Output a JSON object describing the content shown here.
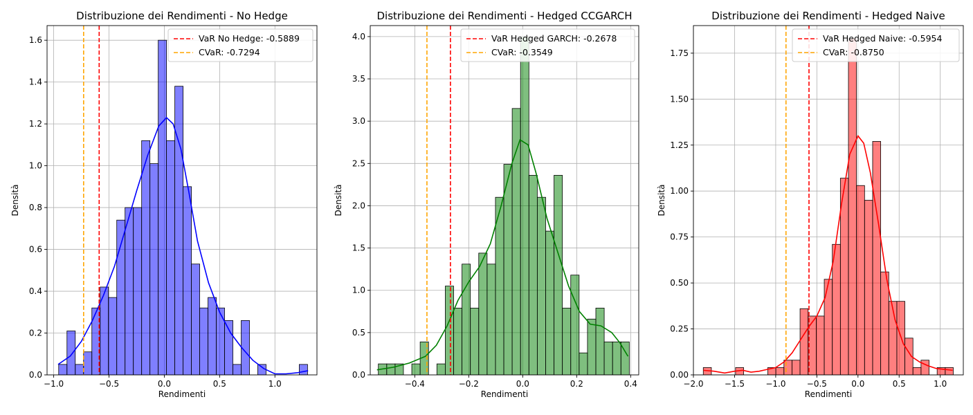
{
  "chart_data": [
    {
      "type": "histogram",
      "title": "Distribuzione dei Rendimenti - No Hedge",
      "xlabel": "Rendimenti",
      "ylabel": "Densità",
      "xlim": [
        -1.06,
        1.38
      ],
      "ylim": [
        0,
        1.67
      ],
      "xticks": [
        -1.0,
        -0.5,
        0.0,
        0.5,
        1.0
      ],
      "xtick_labels": [
        "−1.0",
        "−0.5",
        "0.0",
        "0.5",
        "1.0"
      ],
      "yticks": [
        0.0,
        0.2,
        0.4,
        0.6,
        0.8,
        1.0,
        1.2,
        1.4,
        1.6
      ],
      "ytick_labels": [
        "0.0",
        "0.2",
        "0.4",
        "0.6",
        "0.8",
        "1.0",
        "1.2",
        "1.4",
        "1.6"
      ],
      "grid": true,
      "legend_position": "top-right",
      "bar_color": "#0000ff",
      "kde_color": "#0000ff",
      "bins": [
        [
          -0.955,
          -0.88,
          0.05
        ],
        [
          -0.88,
          -0.805,
          0.21
        ],
        [
          -0.805,
          -0.73,
          0.05
        ],
        [
          -0.73,
          -0.655,
          0.11
        ],
        [
          -0.655,
          -0.58,
          0.32
        ],
        [
          -0.58,
          -0.505,
          0.42
        ],
        [
          -0.505,
          -0.43,
          0.37
        ],
        [
          -0.43,
          -0.355,
          0.74
        ],
        [
          -0.355,
          -0.28,
          0.8
        ],
        [
          -0.28,
          -0.205,
          0.8
        ],
        [
          -0.205,
          -0.13,
          1.12
        ],
        [
          -0.13,
          -0.055,
          1.01
        ],
        [
          -0.055,
          0.02,
          1.6
        ],
        [
          0.02,
          0.095,
          1.12
        ],
        [
          0.095,
          0.17,
          1.38
        ],
        [
          0.17,
          0.245,
          0.9
        ],
        [
          0.245,
          0.32,
          0.53
        ],
        [
          0.32,
          0.395,
          0.32
        ],
        [
          0.395,
          0.47,
          0.37
        ],
        [
          0.47,
          0.545,
          0.32
        ],
        [
          0.545,
          0.62,
          0.26
        ],
        [
          0.62,
          0.695,
          0.05
        ],
        [
          0.695,
          0.77,
          0.26
        ],
        [
          0.77,
          0.845,
          0.0
        ],
        [
          0.845,
          0.92,
          0.05
        ],
        [
          0.92,
          0.995,
          0.0
        ],
        [
          0.995,
          1.07,
          0.0
        ],
        [
          1.07,
          1.145,
          0.0
        ],
        [
          1.145,
          1.22,
          0.0
        ],
        [
          1.22,
          1.295,
          0.05
        ]
      ],
      "kde": [
        [
          -0.96,
          0.05
        ],
        [
          -0.85,
          0.09
        ],
        [
          -0.75,
          0.16
        ],
        [
          -0.65,
          0.26
        ],
        [
          -0.55,
          0.38
        ],
        [
          -0.45,
          0.52
        ],
        [
          -0.35,
          0.7
        ],
        [
          -0.25,
          0.88
        ],
        [
          -0.15,
          1.05
        ],
        [
          -0.05,
          1.19
        ],
        [
          0.02,
          1.23
        ],
        [
          0.08,
          1.2
        ],
        [
          0.15,
          1.08
        ],
        [
          0.22,
          0.88
        ],
        [
          0.3,
          0.64
        ],
        [
          0.4,
          0.44
        ],
        [
          0.5,
          0.3
        ],
        [
          0.6,
          0.2
        ],
        [
          0.7,
          0.13
        ],
        [
          0.8,
          0.07
        ],
        [
          0.9,
          0.03
        ],
        [
          1.0,
          0.005
        ],
        [
          1.1,
          0.005
        ],
        [
          1.2,
          0.01
        ],
        [
          1.3,
          0.02
        ]
      ],
      "lines": [
        {
          "label": "VaR No Hedge: -0.5889",
          "x": -0.5889,
          "color": "#ff0000"
        },
        {
          "label": "CVaR: -0.7294",
          "x": -0.7294,
          "color": "#ffa500"
        }
      ]
    },
    {
      "type": "histogram",
      "title": "Distribuzione dei Rendimenti - Hedged CCGARCH",
      "xlabel": "Rendimenti",
      "ylabel": "Densità",
      "xlim": [
        -0.565,
        0.43
      ],
      "ylim": [
        0,
        4.13
      ],
      "xticks": [
        -0.4,
        -0.2,
        0.0,
        0.2,
        0.4
      ],
      "xtick_labels": [
        "−0.4",
        "−0.2",
        "0.0",
        "0.2",
        "0.4"
      ],
      "yticks": [
        0.0,
        0.5,
        1.0,
        1.5,
        2.0,
        2.5,
        3.0,
        3.5,
        4.0
      ],
      "ytick_labels": [
        "0.0",
        "0.5",
        "1.0",
        "1.5",
        "2.0",
        "2.5",
        "3.0",
        "3.5",
        "4.0"
      ],
      "grid": true,
      "legend_position": "top-right",
      "bar_color": "#008000",
      "kde_color": "#008000",
      "bins": [
        [
          -0.535,
          -0.504,
          0.13
        ],
        [
          -0.504,
          -0.473,
          0.13
        ],
        [
          -0.473,
          -0.442,
          0.13
        ],
        [
          -0.442,
          -0.411,
          0.0
        ],
        [
          -0.411,
          -0.38,
          0.13
        ],
        [
          -0.38,
          -0.349,
          0.39
        ],
        [
          -0.349,
          -0.318,
          0.0
        ],
        [
          -0.318,
          -0.287,
          0.13
        ],
        [
          -0.287,
          -0.256,
          1.05
        ],
        [
          -0.256,
          -0.225,
          0.79
        ],
        [
          -0.225,
          -0.194,
          1.31
        ],
        [
          -0.194,
          -0.163,
          0.79
        ],
        [
          -0.163,
          -0.132,
          1.44
        ],
        [
          -0.132,
          -0.101,
          1.31
        ],
        [
          -0.101,
          -0.07,
          2.1
        ],
        [
          -0.07,
          -0.039,
          2.49
        ],
        [
          -0.039,
          -0.008,
          3.15
        ],
        [
          -0.008,
          0.023,
          4.0
        ],
        [
          0.023,
          0.054,
          2.36
        ],
        [
          0.054,
          0.085,
          2.1
        ],
        [
          0.085,
          0.116,
          1.7
        ],
        [
          0.116,
          0.147,
          2.36
        ],
        [
          0.147,
          0.178,
          0.79
        ],
        [
          0.178,
          0.209,
          1.18
        ],
        [
          0.209,
          0.24,
          0.26
        ],
        [
          0.24,
          0.271,
          0.66
        ],
        [
          0.271,
          0.302,
          0.79
        ],
        [
          0.302,
          0.333,
          0.39
        ],
        [
          0.333,
          0.364,
          0.39
        ],
        [
          0.364,
          0.395,
          0.39
        ]
      ],
      "kde": [
        [
          -0.54,
          0.06
        ],
        [
          -0.48,
          0.09
        ],
        [
          -0.42,
          0.14
        ],
        [
          -0.36,
          0.22
        ],
        [
          -0.32,
          0.35
        ],
        [
          -0.28,
          0.58
        ],
        [
          -0.24,
          0.88
        ],
        [
          -0.2,
          1.1
        ],
        [
          -0.16,
          1.28
        ],
        [
          -0.12,
          1.55
        ],
        [
          -0.08,
          2.0
        ],
        [
          -0.04,
          2.5
        ],
        [
          -0.01,
          2.78
        ],
        [
          0.02,
          2.72
        ],
        [
          0.05,
          2.38
        ],
        [
          0.09,
          1.85
        ],
        [
          0.13,
          1.45
        ],
        [
          0.17,
          1.05
        ],
        [
          0.21,
          0.75
        ],
        [
          0.25,
          0.6
        ],
        [
          0.29,
          0.58
        ],
        [
          0.33,
          0.5
        ],
        [
          0.36,
          0.38
        ],
        [
          0.39,
          0.22
        ]
      ],
      "lines": [
        {
          "label": "VaR Hedged GARCH: -0.2678",
          "x": -0.2678,
          "color": "#ff0000"
        },
        {
          "label": "CVaR: -0.3549",
          "x": -0.3549,
          "color": "#ffa500"
        }
      ]
    },
    {
      "type": "histogram",
      "title": "Distribuzione dei Rendimenti - Hedged Naive",
      "xlabel": "Rendimenti",
      "ylabel": "Densità",
      "xlim": [
        -2.0,
        1.28
      ],
      "ylim": [
        0,
        1.9
      ],
      "xticks": [
        -2.0,
        -1.5,
        -1.0,
        -0.5,
        0.0,
        0.5,
        1.0
      ],
      "xtick_labels": [
        "−2.0",
        "−1.5",
        "−1.0",
        "−0.5",
        "0.0",
        "0.5",
        "1.0"
      ],
      "yticks": [
        0.0,
        0.25,
        0.5,
        0.75,
        1.0,
        1.25,
        1.5,
        1.75
      ],
      "ytick_labels": [
        "0.00",
        "0.25",
        "0.50",
        "0.75",
        "1.00",
        "1.25",
        "1.50",
        "1.75"
      ],
      "grid": true,
      "legend_position": "top-right",
      "bar_color": "#ff0000",
      "kde_color": "#ff0000",
      "bins": [
        [
          -1.88,
          -1.782,
          0.04
        ],
        [
          -1.782,
          -1.684,
          0.0
        ],
        [
          -1.684,
          -1.586,
          0.0
        ],
        [
          -1.586,
          -1.488,
          0.0
        ],
        [
          -1.488,
          -1.39,
          0.04
        ],
        [
          -1.39,
          -1.292,
          0.0
        ],
        [
          -1.292,
          -1.194,
          0.0
        ],
        [
          -1.194,
          -1.096,
          0.0
        ],
        [
          -1.096,
          -0.998,
          0.04
        ],
        [
          -0.998,
          -0.9,
          0.04
        ],
        [
          -0.9,
          -0.802,
          0.08
        ],
        [
          -0.802,
          -0.704,
          0.08
        ],
        [
          -0.704,
          -0.606,
          0.36
        ],
        [
          -0.606,
          -0.508,
          0.32
        ],
        [
          -0.508,
          -0.41,
          0.32
        ],
        [
          -0.41,
          -0.312,
          0.52
        ],
        [
          -0.312,
          -0.214,
          0.71
        ],
        [
          -0.214,
          -0.116,
          1.07
        ],
        [
          -0.116,
          -0.018,
          1.83
        ],
        [
          -0.018,
          0.08,
          1.03
        ],
        [
          0.08,
          0.178,
          0.95
        ],
        [
          0.178,
          0.276,
          1.27
        ],
        [
          0.276,
          0.374,
          0.56
        ],
        [
          0.374,
          0.472,
          0.4
        ],
        [
          0.472,
          0.57,
          0.4
        ],
        [
          0.57,
          0.668,
          0.2
        ],
        [
          0.668,
          0.766,
          0.04
        ],
        [
          0.766,
          0.864,
          0.08
        ],
        [
          0.864,
          0.962,
          0.0
        ],
        [
          0.962,
          1.06,
          0.04
        ],
        [
          1.06,
          1.158,
          0.04
        ]
      ],
      "kde": [
        [
          -1.88,
          0.025
        ],
        [
          -1.75,
          0.02
        ],
        [
          -1.62,
          0.01
        ],
        [
          -1.5,
          0.02
        ],
        [
          -1.4,
          0.025
        ],
        [
          -1.3,
          0.015
        ],
        [
          -1.2,
          0.02
        ],
        [
          -1.1,
          0.03
        ],
        [
          -1.0,
          0.04
        ],
        [
          -0.9,
          0.07
        ],
        [
          -0.8,
          0.12
        ],
        [
          -0.7,
          0.19
        ],
        [
          -0.6,
          0.26
        ],
        [
          -0.5,
          0.32
        ],
        [
          -0.4,
          0.42
        ],
        [
          -0.3,
          0.62
        ],
        [
          -0.2,
          0.93
        ],
        [
          -0.1,
          1.2
        ],
        [
          0.0,
          1.3
        ],
        [
          0.07,
          1.26
        ],
        [
          0.15,
          1.1
        ],
        [
          0.25,
          0.82
        ],
        [
          0.35,
          0.52
        ],
        [
          0.45,
          0.3
        ],
        [
          0.55,
          0.17
        ],
        [
          0.65,
          0.1
        ],
        [
          0.75,
          0.07
        ],
        [
          0.85,
          0.05
        ],
        [
          0.95,
          0.035
        ],
        [
          1.05,
          0.03
        ],
        [
          1.15,
          0.025
        ]
      ],
      "lines": [
        {
          "label": "VaR Hedged Naive: -0.5954",
          "x": -0.5954,
          "color": "#ff0000"
        },
        {
          "label": "CVaR: -0.8750",
          "x": -0.875,
          "color": "#ffa500"
        }
      ]
    }
  ]
}
